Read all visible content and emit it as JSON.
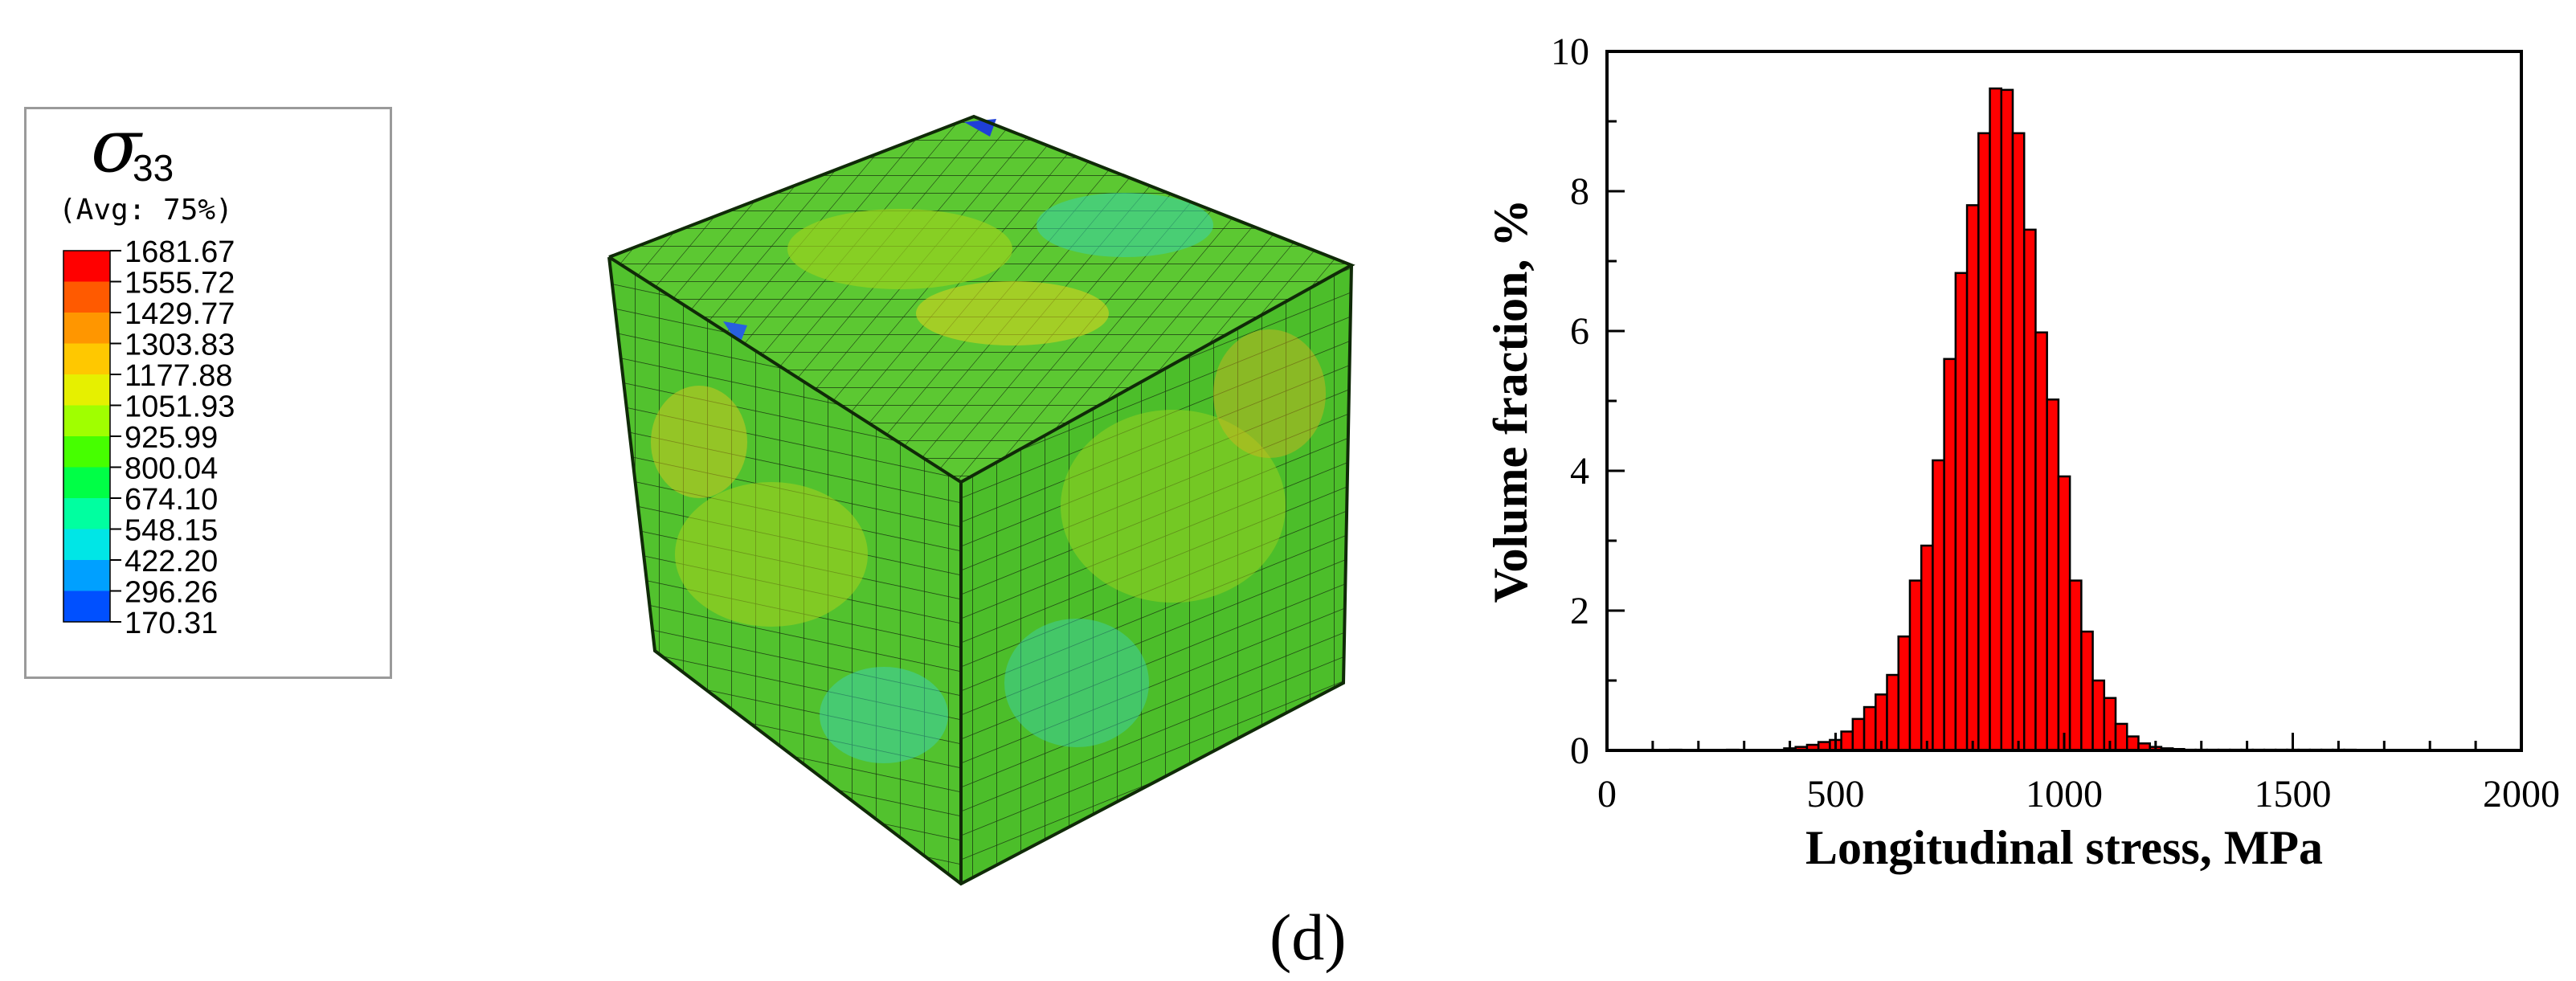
{
  "legend": {
    "symbol": "σ",
    "subscript": "33",
    "avg_label": "(Avg: 75%)",
    "entries": [
      {
        "value": "1681.67",
        "color": "#ff0000"
      },
      {
        "value": "1555.72",
        "color": "#ff5a00"
      },
      {
        "value": "1429.77",
        "color": "#ff9600"
      },
      {
        "value": "1303.83",
        "color": "#ffc800"
      },
      {
        "value": "1177.88",
        "color": "#e6f000"
      },
      {
        "value": "1051.93",
        "color": "#a0ff00"
      },
      {
        "value": "925.99",
        "color": "#46ff00"
      },
      {
        "value": "800.04",
        "color": "#00ff46"
      },
      {
        "value": "674.10",
        "color": "#00ffa0"
      },
      {
        "value": "548.15",
        "color": "#00e6e6"
      },
      {
        "value": "422.20",
        "color": "#00a0ff"
      },
      {
        "value": "296.26",
        "color": "#0050ff"
      },
      {
        "value": "170.31",
        "color": "#0000ff"
      }
    ]
  },
  "panel_label": "(d)",
  "chart_data": {
    "type": "bar",
    "xlabel": "Longitudinal stress, MPa",
    "ylabel": "Volume fraction, %",
    "xlim": [
      0,
      2000
    ],
    "ylim": [
      0,
      10
    ],
    "xticks": [
      0,
      500,
      1000,
      1500,
      2000
    ],
    "yticks": [
      0,
      2,
      4,
      6,
      8,
      10
    ],
    "bar_color": "#ff0000",
    "bin_width": 25,
    "x": [
      150,
      275,
      400,
      425,
      450,
      475,
      500,
      525,
      550,
      575,
      600,
      625,
      650,
      675,
      700,
      725,
      750,
      775,
      800,
      825,
      850,
      875,
      900,
      925,
      950,
      975,
      1000,
      1025,
      1050,
      1075,
      1100,
      1125,
      1150,
      1175,
      1200,
      1225,
      1250,
      1275,
      1300,
      1325,
      1350,
      1375,
      1400,
      1425,
      1450,
      1475,
      1500,
      1525,
      1550,
      1575,
      1600,
      1625
    ],
    "values": [
      0.01,
      0.01,
      0.03,
      0.05,
      0.08,
      0.12,
      0.15,
      0.27,
      0.45,
      0.62,
      0.8,
      1.08,
      1.63,
      2.43,
      2.93,
      4.15,
      5.6,
      6.83,
      7.8,
      8.83,
      9.47,
      9.45,
      8.83,
      7.45,
      5.98,
      5.02,
      3.92,
      2.43,
      1.7,
      1.0,
      0.75,
      0.38,
      0.2,
      0.1,
      0.05,
      0.03,
      0.02,
      0.01,
      0.01,
      0.01,
      0.01,
      0.01,
      0.01,
      0.01,
      0.01,
      0.01,
      0.01,
      0.01,
      0.01,
      0.01,
      0.01,
      0.01
    ]
  }
}
